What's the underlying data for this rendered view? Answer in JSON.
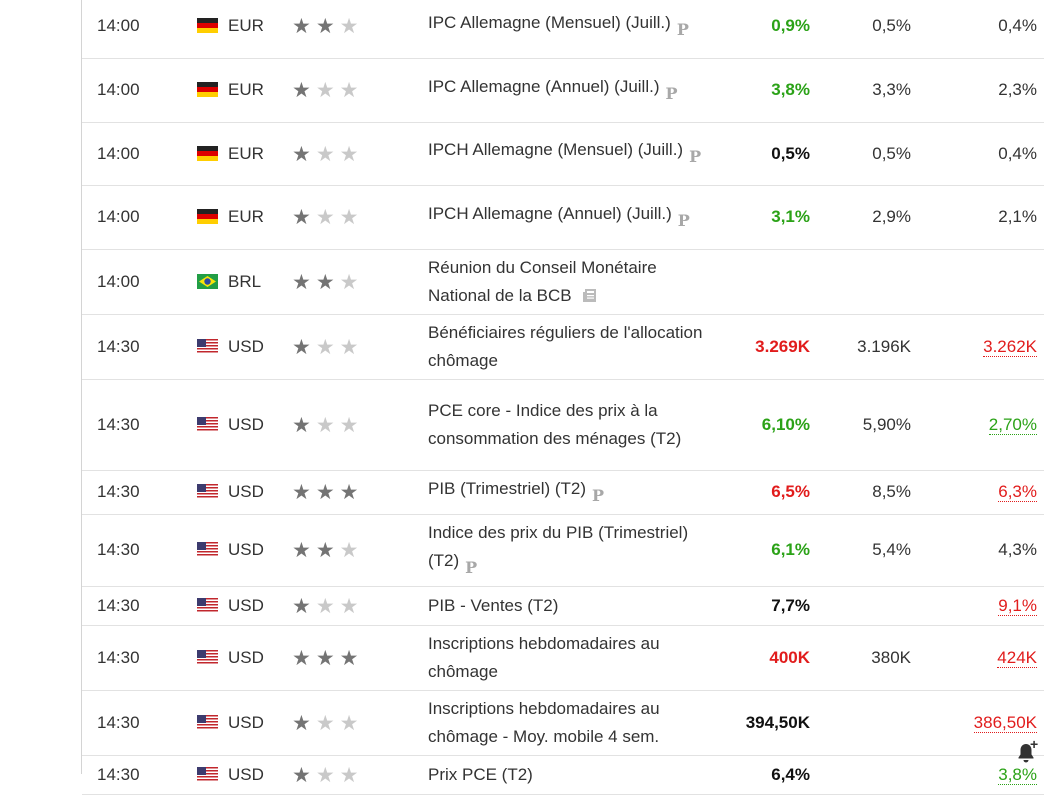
{
  "rows": [
    {
      "time": "14:00",
      "currency": "EUR",
      "flag": "de",
      "stars": 2,
      "event": "IPC Allemagne (Mensuel) (Juill.)",
      "event_icon": "p",
      "event_icon_char": "P",
      "actual": "0,9%",
      "actual_color": "green",
      "forecast": "0,5%",
      "previous": "0,4%",
      "previous_style": "plain",
      "h": 63
    },
    {
      "time": "14:00",
      "currency": "EUR",
      "flag": "de",
      "stars": 1,
      "event": "IPC Allemagne (Annuel) (Juill.)",
      "event_icon": "p",
      "event_icon_char": "P",
      "actual": "3,8%",
      "actual_color": "green",
      "forecast": "3,3%",
      "previous": "2,3%",
      "previous_style": "plain",
      "h": 64
    },
    {
      "time": "14:00",
      "currency": "EUR",
      "flag": "de",
      "stars": 1,
      "event": "IPCH Allemagne (Mensuel) (Juill.)",
      "event_icon": "p",
      "event_icon_char": "P",
      "actual": "0,5%",
      "actual_color": "black",
      "forecast": "0,5%",
      "previous": "0,4%",
      "previous_style": "plain",
      "h": 63
    },
    {
      "time": "14:00",
      "currency": "EUR",
      "flag": "de",
      "stars": 1,
      "event": "IPCH Allemagne (Annuel) (Juill.)",
      "event_icon": "p",
      "event_icon_char": "P",
      "actual": "3,1%",
      "actual_color": "green",
      "forecast": "2,9%",
      "previous": "2,1%",
      "previous_style": "plain",
      "h": 64
    },
    {
      "time": "14:00",
      "currency": "BRL",
      "flag": "br",
      "stars": 2,
      "event": "Réunion du Conseil Monétaire National de la BCB",
      "event_icon": "news",
      "event_icon_char": "",
      "actual": "",
      "actual_color": "black",
      "forecast": "",
      "previous": "",
      "previous_style": "plain",
      "h": 63
    },
    {
      "time": "14:30",
      "currency": "USD",
      "flag": "us",
      "stars": 1,
      "event": "Bénéficiaires réguliers de l'allocation chômage",
      "event_icon": "",
      "event_icon_char": "",
      "actual": "3.269K",
      "actual_color": "red",
      "forecast": "3.196K",
      "previous": "3.262K",
      "previous_style": "red",
      "h": 64
    },
    {
      "time": "14:30",
      "currency": "USD",
      "flag": "us",
      "stars": 1,
      "event": "PCE core - Indice des prix à la consommation des ménages (T2)",
      "event_icon": "",
      "event_icon_char": "",
      "actual": "6,10%",
      "actual_color": "green",
      "forecast": "5,90%",
      "previous": "2,70%",
      "previous_style": "green",
      "h": 91
    },
    {
      "time": "14:30",
      "currency": "USD",
      "flag": "us",
      "stars": 3,
      "event": "PIB (Trimestriel) (T2)",
      "event_icon": "p",
      "event_icon_char": "P",
      "actual": "6,5%",
      "actual_color": "red",
      "forecast": "8,5%",
      "previous": "6,3%",
      "previous_style": "red",
      "h": 39
    },
    {
      "time": "14:30",
      "currency": "USD",
      "flag": "us",
      "stars": 2,
      "event": "Indice des prix du PIB (Trimestriel) (T2)",
      "event_icon": "p",
      "event_icon_char": "P",
      "actual": "6,1%",
      "actual_color": "green",
      "forecast": "5,4%",
      "previous": "4,3%",
      "previous_style": "plain",
      "h": 64
    },
    {
      "time": "14:30",
      "currency": "USD",
      "flag": "us",
      "stars": 1,
      "event": "PIB - Ventes (T2)",
      "event_icon": "",
      "event_icon_char": "",
      "actual": "7,7%",
      "actual_color": "black",
      "forecast": "",
      "previous": "9,1%",
      "previous_style": "red",
      "h": 39
    },
    {
      "time": "14:30",
      "currency": "USD",
      "flag": "us",
      "stars": 3,
      "event": "Inscriptions hebdomadaires au chômage",
      "event_icon": "",
      "event_icon_char": "",
      "actual": "400K",
      "actual_color": "red",
      "forecast": "380K",
      "previous": "424K",
      "previous_style": "red",
      "h": 64
    },
    {
      "time": "14:30",
      "currency": "USD",
      "flag": "us",
      "stars": 1,
      "event": "Inscriptions hebdomadaires au chômage - Moy. mobile 4 sem.",
      "event_icon": "",
      "event_icon_char": "",
      "actual": "394,50K",
      "actual_color": "black",
      "forecast": "",
      "previous": "386,50K",
      "previous_style": "red",
      "h": 64
    },
    {
      "time": "14:30",
      "currency": "USD",
      "flag": "us",
      "stars": 1,
      "event": "Prix PCE (T2)",
      "event_icon": "",
      "event_icon_char": "",
      "actual": "6,4%",
      "actual_color": "black",
      "forecast": "",
      "previous": "3,8%",
      "previous_style": "green",
      "h": 39
    }
  ],
  "alert_icon": "bell-plus-icon",
  "star_char": "★"
}
